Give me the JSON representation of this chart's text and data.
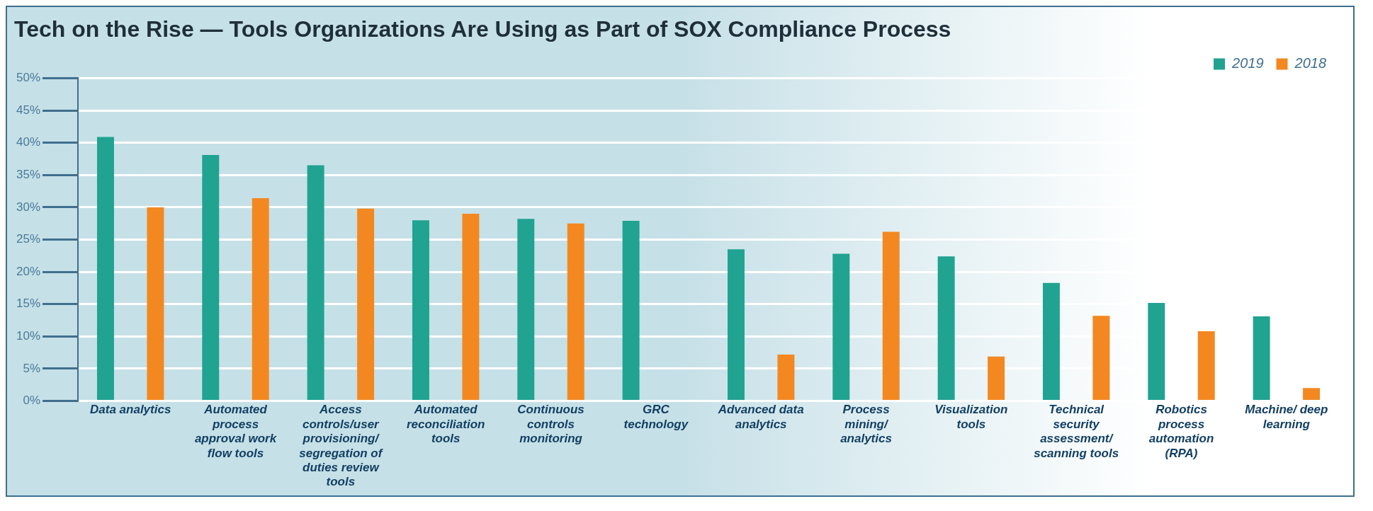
{
  "chart_data": {
    "type": "bar",
    "title": "Tech on the Rise — Tools Organizations Are Using as Part of SOX Compliance Process",
    "categories": [
      "Data analytics",
      "Automated process approval work flow tools",
      "Access controls/user provisioning/ segregation of duties review tools",
      "Automated reconciliation tools",
      "Continuous controls monitoring",
      "GRC technology",
      "Advanced data analytics",
      "Process mining/ analytics",
      "Visualization tools",
      "Technical security assessment/ scanning tools",
      "Robotics process automation (RPA)",
      "Machine/ deep learning"
    ],
    "series": [
      {
        "name": "2019",
        "color": "#20a391",
        "values": [
          40.9,
          38.1,
          36.5,
          28.0,
          28.2,
          27.9,
          23.5,
          22.8,
          22.4,
          18.3,
          15.2,
          13.1
        ]
      },
      {
        "name": "2018",
        "color": "#f38820",
        "values": [
          30.0,
          31.4,
          29.8,
          29.0,
          27.5,
          null,
          7.2,
          26.2,
          6.9,
          13.2,
          10.8,
          2.0
        ]
      }
    ],
    "ylim": [
      0,
      50
    ],
    "yticks": [
      {
        "value": 0,
        "label": "0%"
      },
      {
        "value": 5,
        "label": "5%"
      },
      {
        "value": 10,
        "label": "10%"
      },
      {
        "value": 15,
        "label": "15%"
      },
      {
        "value": 20,
        "label": "20%"
      },
      {
        "value": 25,
        "label": "25%"
      },
      {
        "value": 30,
        "label": "30%"
      },
      {
        "value": 35,
        "label": "35%"
      },
      {
        "value": 40,
        "label": "40%"
      },
      {
        "value": 45,
        "label": "45%"
      },
      {
        "value": 50,
        "label": "50%"
      }
    ],
    "grid": "y",
    "legend": "top right"
  }
}
